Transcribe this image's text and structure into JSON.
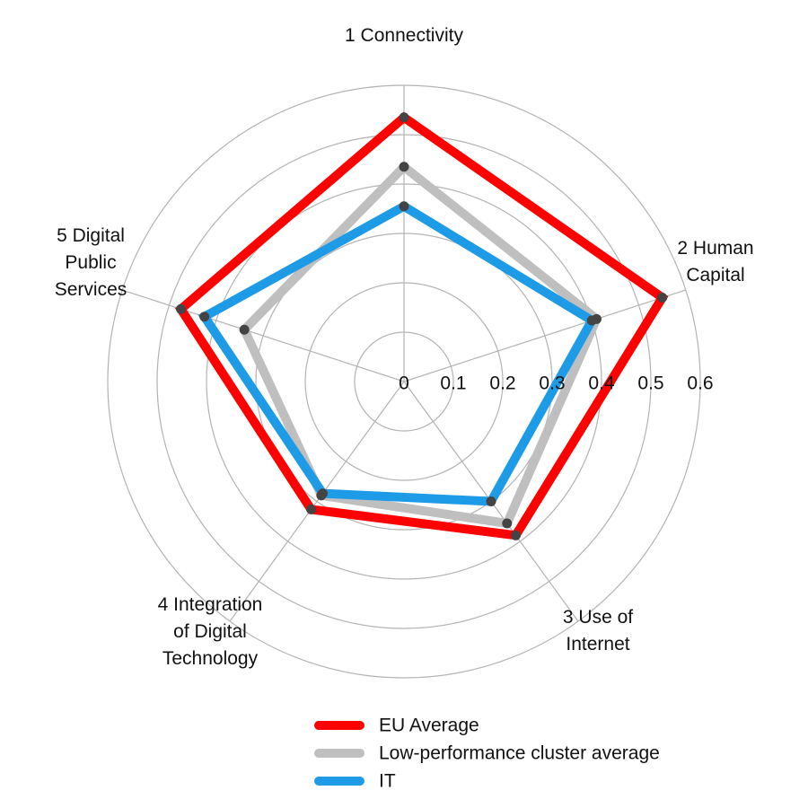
{
  "chart_data": {
    "type": "radar",
    "title": "",
    "categories": [
      "1 Connectivity",
      "2 Human Capital",
      "3 Use of Internet",
      "4 Integration of Digital Technology",
      "5 Digital Public Services"
    ],
    "category_lines": [
      [
        "1 Connectivity"
      ],
      [
        "2 Human",
        "Capital"
      ],
      [
        "3 Use of",
        "Internet"
      ],
      [
        "4 Integration",
        "of Digital",
        "Technology"
      ],
      [
        "5 Digital",
        "Public",
        "Services"
      ]
    ],
    "rlim": [
      0,
      0.6
    ],
    "ticks": [
      0,
      0.1,
      0.2,
      0.3,
      0.4,
      0.5,
      0.6
    ],
    "tick_labels": [
      "0",
      "0.1",
      "0.2",
      "0.3",
      "0.4",
      "0.5",
      "0.6"
    ],
    "grid": true,
    "legend_position": "bottom",
    "series": [
      {
        "name": "EU Average",
        "color": "#ff0000",
        "values": [
          0.535,
          0.55,
          0.385,
          0.32,
          0.475
        ]
      },
      {
        "name": "Low-performance cluster average",
        "color": "#bfbfbf",
        "values": [
          0.435,
          0.41,
          0.355,
          0.285,
          0.34
        ]
      },
      {
        "name": "IT",
        "color": "#1e9be6",
        "values": [
          0.355,
          0.4,
          0.3,
          0.28,
          0.425
        ]
      }
    ]
  }
}
